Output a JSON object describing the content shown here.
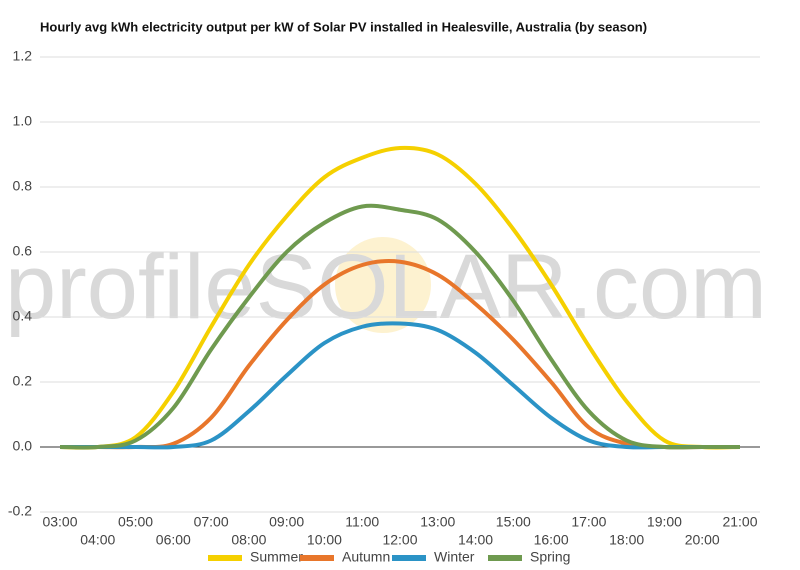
{
  "chart_data": {
    "type": "line",
    "title": "Hourly avg kWh electricity output per kW of Solar PV installed in Healesville, Australia (by season)",
    "watermark": "profileSOLAR.com",
    "categories": [
      "03:00",
      "04:00",
      "05:00",
      "06:00",
      "07:00",
      "08:00",
      "09:00",
      "10:00",
      "11:00",
      "12:00",
      "13:00",
      "14:00",
      "15:00",
      "16:00",
      "17:00",
      "18:00",
      "19:00",
      "20:00",
      "21:00"
    ],
    "series": [
      {
        "name": "Summer",
        "color": "#f5d000",
        "values": [
          0,
          0,
          0.03,
          0.17,
          0.37,
          0.56,
          0.71,
          0.83,
          0.89,
          0.92,
          0.9,
          0.81,
          0.67,
          0.5,
          0.31,
          0.14,
          0.02,
          0,
          0
        ]
      },
      {
        "name": "Autumn",
        "color": "#e8762b",
        "values": [
          0,
          0,
          0,
          0.01,
          0.09,
          0.25,
          0.39,
          0.5,
          0.56,
          0.57,
          0.53,
          0.44,
          0.33,
          0.2,
          0.06,
          0.01,
          0,
          0,
          0
        ]
      },
      {
        "name": "Winter",
        "color": "#2b93c6",
        "values": [
          0,
          0,
          0,
          0,
          0.02,
          0.11,
          0.22,
          0.32,
          0.37,
          0.38,
          0.36,
          0.29,
          0.19,
          0.09,
          0.02,
          0,
          0,
          0,
          0
        ]
      },
      {
        "name": "Spring",
        "color": "#6f9a4f",
        "values": [
          0,
          0,
          0.02,
          0.12,
          0.3,
          0.46,
          0.6,
          0.69,
          0.74,
          0.73,
          0.7,
          0.6,
          0.45,
          0.27,
          0.11,
          0.02,
          0,
          0,
          0
        ]
      }
    ],
    "ylim": [
      -0.2,
      1.2
    ],
    "yticks": [
      -0.2,
      {
        "value": 0,
        "label": "0.0"
      },
      0.2,
      0.4,
      0.6,
      0.8,
      {
        "value": 1,
        "label": "1.0"
      },
      1.2
    ],
    "grid": true,
    "legend": "bottom"
  }
}
